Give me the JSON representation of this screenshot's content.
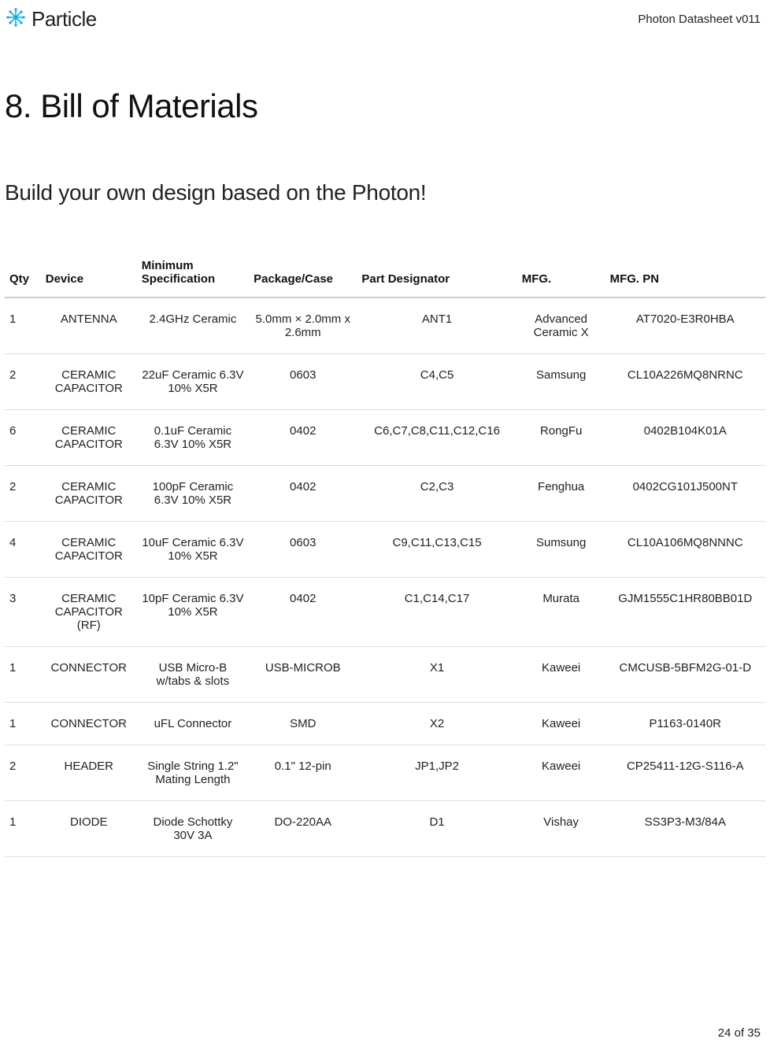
{
  "header": {
    "brand": "Particle",
    "doc_title": "Photon Datasheet v011"
  },
  "h1": "8. Bill of Materials",
  "h2": "Build your own design based on the Photon!",
  "table": {
    "columns": [
      "Qty",
      "Device",
      "Minimum Specification",
      "Package/Case",
      "Part Designator",
      "MFG.",
      "MFG. PN"
    ],
    "rows": [
      [
        "1",
        "ANTENNA",
        "2.4GHz Ceramic",
        "5.0mm × 2.0mm x 2.6mm",
        "ANT1",
        "Advanced Ceramic X",
        "AT7020-E3R0HBA"
      ],
      [
        "2",
        "CERAMIC CAPACITOR",
        "22uF Ceramic 6.3V 10% X5R",
        "0603",
        "C4,C5",
        "Samsung",
        "CL10A226MQ8NRNC"
      ],
      [
        "6",
        "CERAMIC CAPACITOR",
        "0.1uF Ceramic 6.3V 10% X5R",
        "0402",
        "C6,C7,C8,C11,C12,C16",
        "RongFu",
        "0402B104K01A"
      ],
      [
        "2",
        "CERAMIC CAPACITOR",
        "100pF Ceramic 6.3V 10% X5R",
        "0402",
        "C2,C3",
        "Fenghua",
        "0402CG101J500NT"
      ],
      [
        "4",
        "CERAMIC CAPACITOR",
        "10uF Ceramic 6.3V 10% X5R",
        "0603",
        "C9,C11,C13,C15",
        "Sumsung",
        "CL10A106MQ8NNNC"
      ],
      [
        "3",
        "CERAMIC CAPACITOR (RF)",
        "10pF Ceramic 6.3V 10% X5R",
        "0402",
        "C1,C14,C17",
        "Murata",
        "GJM1555C1HR80BB01D"
      ],
      [
        "1",
        "CONNECTOR",
        "USB Micro-B w/tabs & slots",
        "USB-MICROB",
        "X1",
        "Kaweei",
        "CMCUSB-5BFM2G-01-D"
      ],
      [
        "1",
        "CONNECTOR",
        "uFL Connector",
        "SMD",
        "X2",
        "Kaweei",
        "P1163-0140R"
      ],
      [
        "2",
        "HEADER",
        "Single String 1.2\" Mating Length",
        "0.1\" 12-pin",
        "JP1,JP2",
        "Kaweei",
        "CP25411-12G-S116-A"
      ],
      [
        "1",
        "DIODE",
        "Diode Schottky 30V 3A",
        "DO-220AA",
        "D1",
        "Vishay",
        "SS3P3-M3/84A"
      ]
    ]
  },
  "footer": {
    "page": "24 of 35"
  },
  "colors": {
    "logo": "#00aeef",
    "text": "#222222",
    "rule_heavy": "#cccccc",
    "rule_light": "#dddddd",
    "background": "#ffffff"
  },
  "typography": {
    "h1_fontsize": 42,
    "h2_fontsize": 28,
    "body_fontsize": 15,
    "header_fontsize": 15
  }
}
